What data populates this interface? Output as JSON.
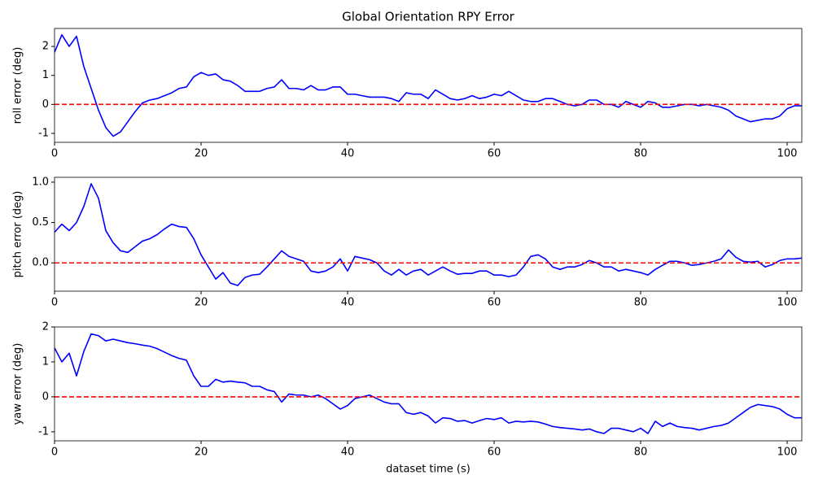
{
  "chart_data": [
    {
      "type": "line",
      "title": "Global Orientation RPY Error",
      "ylabel": "roll error (deg)",
      "color": "#0000ff",
      "x": [
        0,
        1,
        2,
        3,
        4,
        5,
        6,
        7,
        8,
        9,
        10,
        11,
        12,
        13,
        14,
        15,
        16,
        17,
        18,
        19,
        20,
        21,
        22,
        23,
        24,
        25,
        26,
        27,
        28,
        29,
        30,
        31,
        32,
        33,
        34,
        35,
        36,
        37,
        38,
        39,
        40,
        41,
        42,
        43,
        44,
        45,
        46,
        47,
        48,
        49,
        50,
        51,
        52,
        53,
        54,
        55,
        56,
        57,
        58,
        59,
        60,
        61,
        62,
        63,
        64,
        65,
        66,
        67,
        68,
        69,
        70,
        71,
        72,
        73,
        74,
        75,
        76,
        77,
        78,
        79,
        80,
        81,
        82,
        83,
        84,
        85,
        86,
        87,
        88,
        89,
        90,
        91,
        92,
        93,
        94,
        95,
        96,
        97,
        98,
        99,
        100,
        101,
        102
      ],
      "values": [
        1.8,
        2.4,
        2.0,
        2.35,
        1.3,
        0.55,
        -0.2,
        -0.8,
        -1.1,
        -0.95,
        -0.6,
        -0.25,
        0.05,
        0.15,
        0.2,
        0.3,
        0.4,
        0.55,
        0.6,
        0.95,
        1.1,
        1.0,
        1.05,
        0.85,
        0.8,
        0.65,
        0.45,
        0.45,
        0.45,
        0.55,
        0.6,
        0.85,
        0.55,
        0.55,
        0.5,
        0.65,
        0.5,
        0.5,
        0.6,
        0.6,
        0.35,
        0.35,
        0.3,
        0.25,
        0.25,
        0.25,
        0.2,
        0.1,
        0.4,
        0.35,
        0.35,
        0.2,
        0.5,
        0.35,
        0.2,
        0.15,
        0.2,
        0.3,
        0.2,
        0.25,
        0.35,
        0.3,
        0.45,
        0.3,
        0.15,
        0.1,
        0.1,
        0.2,
        0.2,
        0.1,
        0.0,
        -0.05,
        0.0,
        0.15,
        0.15,
        0.0,
        0.0,
        -0.1,
        0.1,
        0.0,
        -0.1,
        0.1,
        0.05,
        -0.1,
        -0.1,
        -0.05,
        0.0,
        0.0,
        -0.05,
        0.0,
        -0.05,
        -0.1,
        -0.2,
        -0.4,
        -0.5,
        -0.6,
        -0.55,
        -0.5,
        -0.5,
        -0.4,
        -0.15,
        -0.05,
        -0.05
      ],
      "xlim": [
        0,
        102
      ],
      "xticks": [
        0,
        20,
        40,
        60,
        80,
        100
      ],
      "ylim": [
        -1.31,
        2.62
      ],
      "yticks": [
        -1,
        0,
        1,
        2
      ],
      "hline": 0,
      "hline_color": "#ff0000"
    },
    {
      "type": "line",
      "ylabel": "pitch error (deg)",
      "color": "#0000ff",
      "x": [
        0,
        1,
        2,
        3,
        4,
        5,
        6,
        7,
        8,
        9,
        10,
        11,
        12,
        13,
        14,
        15,
        16,
        17,
        18,
        19,
        20,
        21,
        22,
        23,
        24,
        25,
        26,
        27,
        28,
        29,
        30,
        31,
        32,
        33,
        34,
        35,
        36,
        37,
        38,
        39,
        40,
        41,
        42,
        43,
        44,
        45,
        46,
        47,
        48,
        49,
        50,
        51,
        52,
        53,
        54,
        55,
        56,
        57,
        58,
        59,
        60,
        61,
        62,
        63,
        64,
        65,
        66,
        67,
        68,
        69,
        70,
        71,
        72,
        73,
        74,
        75,
        76,
        77,
        78,
        79,
        80,
        81,
        82,
        83,
        84,
        85,
        86,
        87,
        88,
        89,
        90,
        91,
        92,
        93,
        94,
        95,
        96,
        97,
        98,
        99,
        100,
        101,
        102
      ],
      "values": [
        0.38,
        0.48,
        0.4,
        0.5,
        0.7,
        0.98,
        0.8,
        0.4,
        0.25,
        0.15,
        0.13,
        0.2,
        0.27,
        0.3,
        0.35,
        0.42,
        0.48,
        0.45,
        0.44,
        0.3,
        0.1,
        -0.05,
        -0.2,
        -0.12,
        -0.25,
        -0.28,
        -0.18,
        -0.15,
        -0.14,
        -0.05,
        0.05,
        0.15,
        0.08,
        0.05,
        0.02,
        -0.1,
        -0.12,
        -0.1,
        -0.05,
        0.05,
        -0.1,
        0.08,
        0.06,
        0.04,
        0.0,
        -0.1,
        -0.15,
        -0.08,
        -0.15,
        -0.1,
        -0.08,
        -0.15,
        -0.1,
        -0.05,
        -0.1,
        -0.14,
        -0.13,
        -0.13,
        -0.1,
        -0.1,
        -0.15,
        -0.15,
        -0.17,
        -0.15,
        -0.05,
        0.08,
        0.1,
        0.05,
        -0.05,
        -0.08,
        -0.05,
        -0.05,
        -0.02,
        0.03,
        0.0,
        -0.05,
        -0.05,
        -0.1,
        -0.08,
        -0.1,
        -0.12,
        -0.15,
        -0.08,
        -0.03,
        0.02,
        0.02,
        0.0,
        -0.03,
        -0.02,
        0.0,
        0.02,
        0.05,
        0.16,
        0.07,
        0.02,
        0.01,
        0.02,
        -0.05,
        -0.02,
        0.03,
        0.05,
        0.05,
        0.06
      ],
      "xlim": [
        0,
        102
      ],
      "xticks": [
        0,
        20,
        40,
        60,
        80,
        100
      ],
      "ylim": [
        -0.35,
        1.06
      ],
      "yticks": [
        {
          "value": 0,
          "label": "0.0"
        },
        {
          "value": 0.5,
          "label": "0.5"
        },
        {
          "value": 1,
          "label": "1.0"
        }
      ],
      "hline": 0,
      "hline_color": "#ff0000"
    },
    {
      "type": "line",
      "ylabel": "yaw error (deg)",
      "xlabel": "dataset time (s)",
      "color": "#0000ff",
      "x": [
        0,
        1,
        2,
        3,
        4,
        5,
        6,
        7,
        8,
        9,
        10,
        11,
        12,
        13,
        14,
        15,
        16,
        17,
        18,
        19,
        20,
        21,
        22,
        23,
        24,
        25,
        26,
        27,
        28,
        29,
        30,
        31,
        32,
        33,
        34,
        35,
        36,
        37,
        38,
        39,
        40,
        41,
        42,
        43,
        44,
        45,
        46,
        47,
        48,
        49,
        50,
        51,
        52,
        53,
        54,
        55,
        56,
        57,
        58,
        59,
        60,
        61,
        62,
        63,
        64,
        65,
        66,
        67,
        68,
        69,
        70,
        71,
        72,
        73,
        74,
        75,
        76,
        77,
        78,
        79,
        80,
        81,
        82,
        83,
        84,
        85,
        86,
        87,
        88,
        89,
        90,
        91,
        92,
        93,
        94,
        95,
        96,
        97,
        98,
        99,
        100,
        101,
        102
      ],
      "values": [
        1.4,
        1.0,
        1.25,
        0.6,
        1.3,
        1.8,
        1.75,
        1.6,
        1.65,
        1.6,
        1.55,
        1.52,
        1.48,
        1.45,
        1.38,
        1.28,
        1.18,
        1.1,
        1.05,
        0.6,
        0.3,
        0.3,
        0.5,
        0.42,
        0.45,
        0.42,
        0.4,
        0.3,
        0.3,
        0.2,
        0.15,
        -0.15,
        0.08,
        0.05,
        0.05,
        0.0,
        0.05,
        -0.05,
        -0.2,
        -0.35,
        -0.25,
        -0.05,
        0.0,
        0.05,
        -0.05,
        -0.15,
        -0.2,
        -0.2,
        -0.45,
        -0.5,
        -0.45,
        -0.55,
        -0.75,
        -0.6,
        -0.62,
        -0.7,
        -0.68,
        -0.75,
        -0.68,
        -0.62,
        -0.65,
        -0.6,
        -0.75,
        -0.7,
        -0.72,
        -0.7,
        -0.72,
        -0.78,
        -0.85,
        -0.88,
        -0.9,
        -0.92,
        -0.95,
        -0.92,
        -1.0,
        -1.05,
        -0.9,
        -0.9,
        -0.95,
        -1.0,
        -0.9,
        -1.05,
        -0.7,
        -0.85,
        -0.75,
        -0.85,
        -0.88,
        -0.9,
        -0.95,
        -0.9,
        -0.85,
        -0.82,
        -0.75,
        -0.6,
        -0.45,
        -0.3,
        -0.22,
        -0.25,
        -0.28,
        -0.35,
        -0.5,
        -0.6,
        -0.6
      ],
      "xlim": [
        0,
        102
      ],
      "xticks": [
        0,
        20,
        40,
        60,
        80,
        100
      ],
      "ylim": [
        -1.26,
        2.0
      ],
      "yticks": [
        -1,
        0,
        1,
        2
      ],
      "hline": 0,
      "hline_color": "#ff0000"
    }
  ]
}
